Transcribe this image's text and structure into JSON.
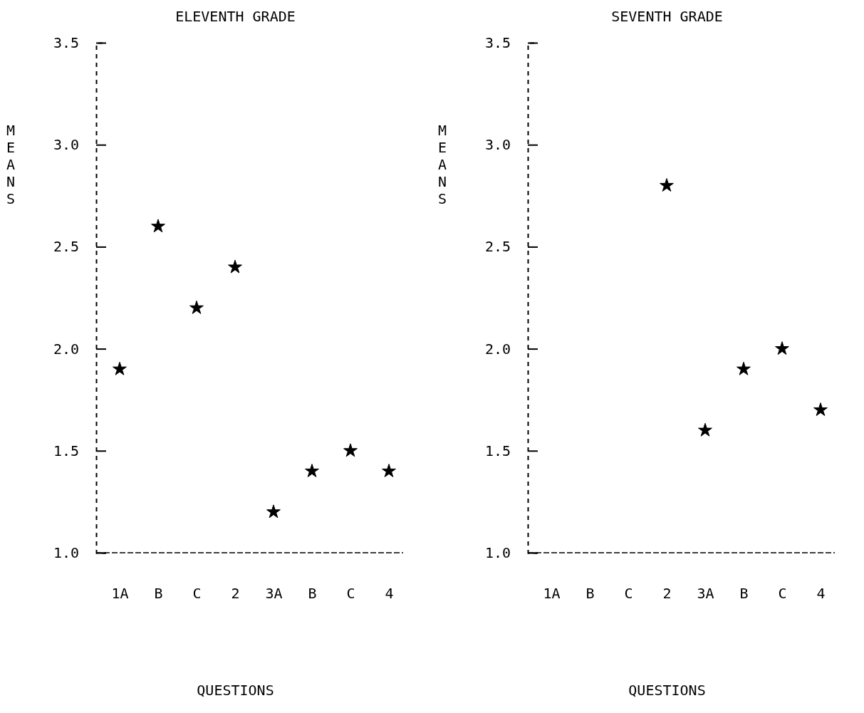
{
  "chart_data": [
    {
      "type": "scatter",
      "title": "ELEVENTH GRADE",
      "xlabel": "QUESTIONS",
      "ylabel": "MEANS",
      "categories": [
        "1A",
        "B",
        "C",
        "2",
        "3A",
        "B",
        "C",
        "4"
      ],
      "values": [
        1.9,
        2.6,
        2.2,
        2.4,
        1.2,
        1.4,
        1.5,
        1.4
      ],
      "color": "#000000",
      "marker": "star",
      "grid": false,
      "ylim": [
        1.0,
        3.5
      ],
      "yticks": [
        {
          "value": 1,
          "label": "1.0"
        },
        1.5,
        {
          "value": 2,
          "label": "2.0"
        },
        2.5,
        {
          "value": 3,
          "label": "3.0"
        },
        3.5
      ]
    },
    {
      "type": "scatter",
      "title": "SEVENTH GRADE",
      "xlabel": "QUESTIONS",
      "ylabel": "MEANS",
      "categories": [
        "1A",
        "B",
        "C",
        "2",
        "3A",
        "B",
        "C",
        "4"
      ],
      "values": [
        null,
        null,
        null,
        2.8,
        1.6,
        1.9,
        2.0,
        1.7
      ],
      "color": "#000000",
      "marker": "star",
      "grid": false,
      "ylim": [
        1.0,
        3.5
      ],
      "yticks": [
        {
          "value": 1,
          "label": "1.0"
        },
        1.5,
        {
          "value": 2,
          "label": "2.0"
        },
        2.5,
        {
          "value": 3,
          "label": "3.0"
        },
        3.5
      ]
    }
  ]
}
